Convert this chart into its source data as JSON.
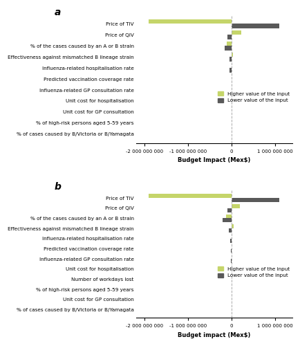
{
  "panel_a": {
    "categories": [
      "% of cases caused by B/Victoria or B/Yamagata",
      "% of high-risk persons aged 5-59 years",
      "Unit cost for GP consultation",
      "Unit cost for hospitalisation",
      "Influenza-related GP consultation rate",
      "Predicted vaccination coverage rate",
      "Influenza-related hospitalisation rate",
      "Effectiveness against mismatched B lineage strain",
      "% of the cases caused by an A or B strain",
      "Price of QIV",
      "Price of TIV"
    ],
    "higher_values": [
      0,
      0,
      0,
      0,
      0,
      0,
      0,
      30000000,
      -110000000,
      230000000,
      -1900000000
    ],
    "lower_values": [
      0,
      0,
      0,
      0,
      0,
      0,
      -40000000,
      -45000000,
      -160000000,
      -100000000,
      1100000000
    ]
  },
  "panel_b": {
    "categories": [
      "% of cases caused by B/Victoria or B/Yamagata",
      "Unit cost for GP consultation",
      "% of high-risk persons aged 5-59 years",
      "Number of workdays lost",
      "Unit cost for hospitalisation",
      "Influenza-related GP consultation rate",
      "Predicted vaccination coverage rate",
      "Influenza-related hospitalisation rate",
      "Effectiveness against mismatched B lineage strain",
      "% of the cases caused by an A or B strain",
      "Price of QIV",
      "Price of TIV"
    ],
    "higher_values": [
      0,
      0,
      0,
      0,
      0,
      0,
      0,
      0,
      50000000,
      -120000000,
      200000000,
      -1900000000
    ],
    "lower_values": [
      0,
      0,
      0,
      0,
      0,
      -20000000,
      -20000000,
      -35000000,
      -55000000,
      -200000000,
      -100000000,
      1100000000
    ]
  },
  "color_higher": "#c5d56a",
  "color_lower": "#595959",
  "xlabel_a": "Budget Impact (Mex$)",
  "xlabel_b": "Budget impact (Mex$)",
  "legend_higher": "Higher value of the input",
  "legend_lower": "Lower value of the input",
  "xlim": [
    -2200000000,
    1400000000
  ],
  "xticks": [
    -2000000000,
    -1000000000,
    0,
    1000000000
  ],
  "xticklabels": [
    "-2 000 000 000",
    "-1 000 000 000",
    "0",
    "1 000 000 000"
  ]
}
